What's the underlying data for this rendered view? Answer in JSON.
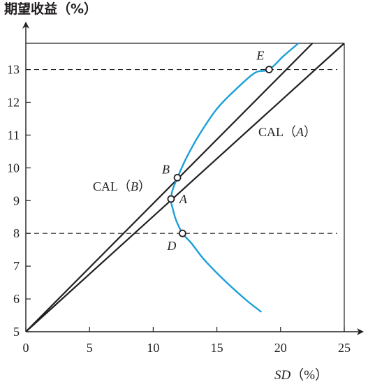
{
  "chart_data": {
    "type": "line",
    "title": "",
    "ylabel": "期望收益（%）",
    "xlabel_italic": "SD",
    "xlabel_unit": "（%）",
    "xlim": [
      0,
      25
    ],
    "ylim": [
      5,
      13.8
    ],
    "x_ticks": [
      0,
      5,
      10,
      15,
      20,
      25
    ],
    "y_ticks": [
      5,
      6,
      7,
      8,
      9,
      10,
      11,
      12,
      13
    ],
    "grid": false,
    "frontier": {
      "color": "#1ba0d8",
      "points": [
        [
          18.5,
          5.6
        ],
        [
          17.2,
          6.0
        ],
        [
          15.5,
          6.6
        ],
        [
          14.0,
          7.2
        ],
        [
          13.0,
          7.7
        ],
        [
          12.3,
          8.0
        ],
        [
          11.8,
          8.4
        ],
        [
          11.5,
          8.8
        ],
        [
          11.4,
          9.0
        ],
        [
          11.5,
          9.3
        ],
        [
          11.9,
          9.7
        ],
        [
          12.6,
          10.3
        ],
        [
          13.6,
          11.0
        ],
        [
          15.0,
          11.8
        ],
        [
          16.5,
          12.4
        ],
        [
          18.0,
          12.9
        ],
        [
          19.1,
          13.0
        ],
        [
          20.2,
          13.4
        ],
        [
          21.4,
          13.8
        ]
      ]
    },
    "lines": [
      {
        "name": "CAL（B）",
        "label_main": "CAL（",
        "label_var": "B",
        "label_close": "）",
        "points": [
          [
            0,
            5
          ],
          [
            22.5,
            13.8
          ]
        ],
        "color": "#231f20"
      },
      {
        "name": "CAL（A）",
        "label_main": "CAL（",
        "label_var": "A",
        "label_close": "）",
        "points": [
          [
            0,
            5
          ],
          [
            25,
            13.8
          ]
        ],
        "color": "#231f20"
      }
    ],
    "reference_lines_y": [
      13,
      8
    ],
    "points": [
      {
        "label": "A",
        "x": 11.4,
        "y": 9.05
      },
      {
        "label": "B",
        "x": 11.9,
        "y": 9.7
      },
      {
        "label": "D",
        "x": 12.3,
        "y": 8.0
      },
      {
        "label": "E",
        "x": 19.1,
        "y": 13.0
      }
    ]
  }
}
